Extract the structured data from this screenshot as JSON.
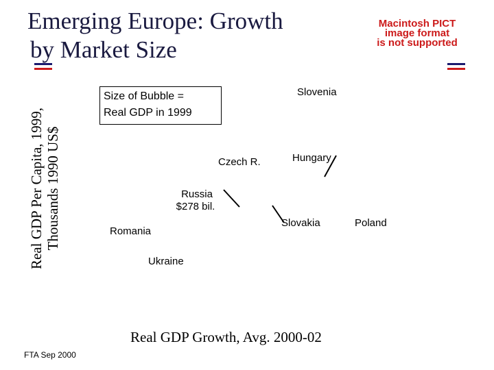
{
  "title_line1": "Emerging Europe: Growth",
  "title_line2": "by Market Size",
  "image_placeholder": {
    "line1": "Macintosh PICT",
    "line2": "image format",
    "line3": "is not supported",
    "color": "#cc1a1a"
  },
  "footer": "FTA Sep 2000",
  "bubble_note": {
    "line1": "Size of Bubble =",
    "line2": "Real GDP in 1999"
  },
  "chart_data": {
    "type": "scatter",
    "xlabel": "Real GDP Growth, Avg. 2000-02",
    "ylabel_line1": "Real GDP Per Capita, 1999,",
    "ylabel_line2": "Thousands 1990 US$",
    "grid": false,
    "points": [
      {
        "name": "Slovenia",
        "label": "Slovenia"
      },
      {
        "name": "Czech R.",
        "label": "Czech R."
      },
      {
        "name": "Hungary",
        "label": "Hungary"
      },
      {
        "name": "Russia",
        "label_line1": "Russia",
        "label_line2": "$278 bil."
      },
      {
        "name": "Slovakia",
        "label": "Slovakia"
      },
      {
        "name": "Poland",
        "label": "Poland"
      },
      {
        "name": "Romania",
        "label": "Romania"
      },
      {
        "name": "Ukraine",
        "label": "Ukraine"
      }
    ]
  },
  "accent_colors": {
    "navy": "#1a1a6e",
    "red": "#cc1a1a"
  }
}
